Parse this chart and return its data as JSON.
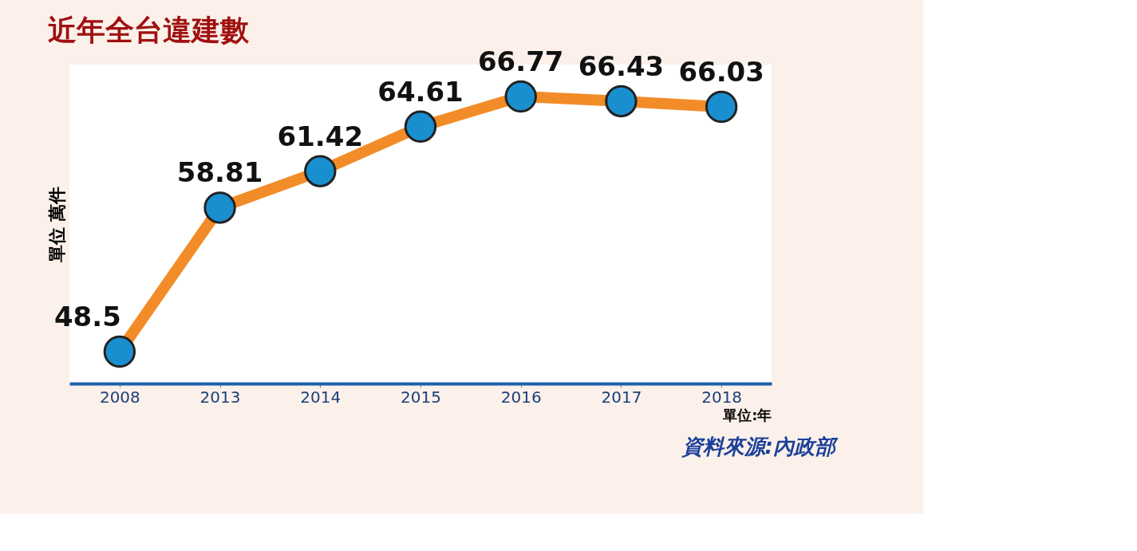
{
  "chart_data": {
    "type": "line",
    "title": "近年全台違建數",
    "ylabel": "單位 萬件",
    "xlabel": "單位:年",
    "categories": [
      "2008",
      "2013",
      "2014",
      "2015",
      "2016",
      "2017",
      "2018"
    ],
    "series": [
      {
        "color": "#f28c28",
        "values": [
          48.5,
          58.81,
          61.42,
          64.61,
          66.77,
          66.43,
          66.03
        ]
      }
    ],
    "data_labels": true,
    "marker": "circle",
    "grid": false,
    "annotations": [
      "資料來源:內政部"
    ]
  }
}
